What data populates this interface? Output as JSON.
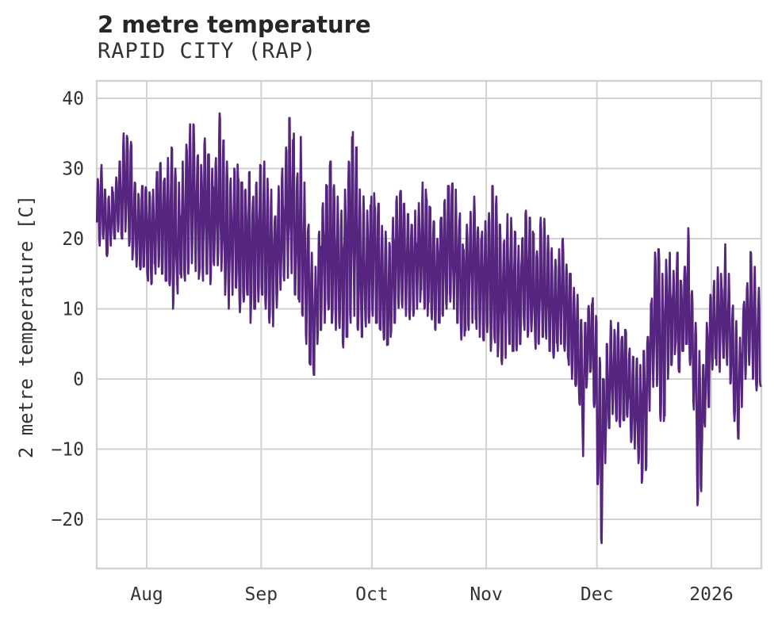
{
  "chart_data": {
    "type": "line",
    "title": "2 metre temperature",
    "subtitle": "RAPID CITY (RAP)",
    "ylabel": "2 metre temperature [C]",
    "xlabel": "",
    "grid": true,
    "legend": "none",
    "line_color": "#562580",
    "grid_color": "#d2d2d2",
    "background_color": "#ffffff",
    "text_color": "#262626",
    "ylim": [
      -26.5,
      42.5
    ],
    "yticks": [
      40,
      30,
      20,
      10,
      0,
      -10,
      -20
    ],
    "ytick_labels": [
      "40",
      "30",
      "20",
      "10",
      "0",
      "−10",
      "−20"
    ],
    "xtick_labels": [
      "Aug",
      "Sep",
      "Oct",
      "Nov",
      "Dec",
      "2026"
    ],
    "xticks": [
      {
        "label": "Aug",
        "day": 14
      },
      {
        "label": "Sep",
        "day": 45
      },
      {
        "label": "Oct",
        "day": 75
      },
      {
        "label": "Nov",
        "day": 106
      },
      {
        "label": "Dec",
        "day": 136
      },
      {
        "label": "2026",
        "day": 167
      }
    ],
    "x_range_days": [
      0.45,
      180.45
    ],
    "x_axis_note": "day 0 is 14 days before the Aug tick; axis spans mid-Jul 2025 to mid-Jan 2026",
    "series": [
      {
        "name": "2 metre temperature",
        "style": "dense sub-daily trace reconstructed from daily min/max envelope read off the plot",
        "daily_envelope": {
          "min": [
            18.5,
            19,
            20,
            17.5,
            19,
            20,
            21,
            20,
            21,
            19,
            17,
            16,
            15.5,
            16,
            14,
            13.5,
            15,
            16,
            15,
            14,
            13,
            10,
            12,
            13,
            14,
            15,
            16.5,
            15,
            13,
            14,
            15,
            13.5,
            15,
            16,
            15,
            12,
            10,
            12,
            13,
            9.5,
            11,
            12,
            8,
            10,
            11,
            12,
            10,
            8,
            7.5,
            9,
            11,
            13,
            14,
            13,
            12,
            11,
            9,
            5,
            2,
            0.6,
            4,
            7,
            8,
            9,
            8,
            7,
            5,
            4.5,
            6,
            8,
            9,
            7,
            6,
            7,
            8,
            9,
            8,
            7,
            5.5,
            4.5,
            6,
            8,
            9,
            10,
            9,
            8.5,
            9,
            10,
            11,
            10,
            9,
            8,
            7,
            8,
            9,
            10,
            11,
            10,
            8,
            5.6,
            6,
            7,
            8,
            7,
            6,
            5.5,
            6,
            4,
            3.9,
            2,
            1,
            3,
            5,
            4,
            3,
            5,
            7,
            6,
            5,
            4,
            5,
            6,
            5,
            4,
            3,
            4,
            5,
            4,
            2,
            0,
            -1,
            -5,
            -11,
            -2.5,
            1,
            -4,
            -15,
            -23.4,
            -12,
            -7,
            -5,
            -6,
            -7,
            -8,
            -6,
            -9,
            -10,
            -12,
            -14.8,
            -13,
            -5,
            -2,
            -1,
            -6,
            -6,
            0,
            2,
            3,
            1,
            4,
            5,
            2,
            -5,
            -18,
            -16,
            -8,
            -4,
            0,
            2,
            1,
            3,
            2,
            -2,
            -6,
            -9,
            -4,
            0,
            2,
            0,
            -2,
            -1
          ],
          "max": [
            28.5,
            30.5,
            27,
            26,
            27.5,
            29,
            31,
            36,
            36.2,
            33.8,
            28,
            26.5,
            27.5,
            27.5,
            28,
            27,
            29.5,
            31,
            30,
            31.5,
            33,
            30,
            28,
            31,
            34,
            36.3,
            36.5,
            32,
            30.5,
            34.3,
            32,
            30,
            33.5,
            39,
            34,
            31,
            29,
            30,
            31,
            28,
            27,
            29.5,
            26,
            28,
            30.5,
            31,
            29,
            27,
            25,
            28,
            30,
            33,
            37.2,
            35,
            31,
            34.5,
            28,
            22,
            18,
            16,
            21,
            26,
            29,
            31,
            28,
            26,
            24,
            27,
            31,
            35.2,
            33,
            28,
            26.5,
            24,
            26,
            26.5,
            25,
            23,
            21,
            20,
            23,
            26,
            26.8,
            25,
            23.5,
            22,
            24,
            26,
            28,
            27,
            25,
            22.5,
            20,
            23,
            25.5,
            27.5,
            28.5,
            27,
            24,
            20,
            22,
            24.5,
            26,
            23,
            21,
            22.5,
            24,
            27.5,
            26,
            22,
            20,
            23.5,
            24,
            21,
            19,
            22,
            24,
            23,
            21,
            20,
            23,
            24,
            22,
            19,
            17,
            18.5,
            20,
            18,
            15,
            13,
            12,
            10,
            8,
            11,
            11.5,
            9,
            3,
            0,
            5,
            8.3,
            7,
            8,
            6,
            7,
            5,
            4,
            3,
            2,
            4,
            6,
            12,
            19.5,
            18.5,
            15,
            17,
            18,
            16,
            18,
            14,
            16,
            21.5,
            14,
            8,
            4,
            2,
            8,
            12,
            14,
            16,
            15,
            19.3,
            15,
            12,
            9,
            7,
            11,
            15,
            18.8,
            16,
            13,
            18.5
          ]
        }
      }
    ],
    "notable_points": [
      {
        "desc": "seasonal maximum ~39 C around Aug 20"
      },
      {
        "desc": "sharp cold dip to ~0.5 C around Sep 17"
      },
      {
        "desc": "deep cold snap to ~-23.5 C around Dec 1-2"
      },
      {
        "desc": "second dip to ~-15 C around Dec 13 and ~-18 C around Dec 28"
      }
    ]
  }
}
